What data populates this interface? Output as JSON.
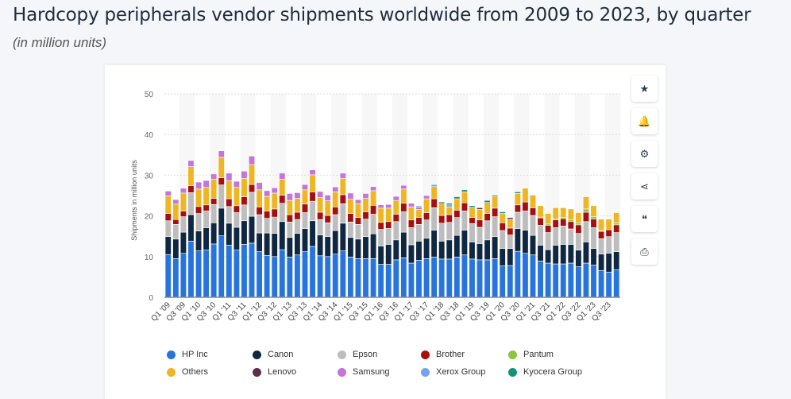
{
  "header": {
    "title": "Hardcopy peripherals vendor shipments worldwide from 2009 to 2023, by quarter",
    "subtitle": "(in million units)"
  },
  "toolbar": [
    {
      "icon": "star-icon",
      "glyph": "★"
    },
    {
      "icon": "bell-icon",
      "glyph": "🔔"
    },
    {
      "icon": "gear-icon",
      "glyph": "⚙"
    },
    {
      "icon": "share-icon",
      "glyph": "⋖"
    },
    {
      "icon": "quote-icon",
      "glyph": "❝"
    },
    {
      "icon": "print-icon",
      "glyph": "⎙"
    }
  ],
  "chart_data": {
    "type": "bar",
    "stacked": true,
    "ylabel": "Shipments in million units",
    "ylim": [
      0,
      50
    ],
    "yticks": [
      0,
      10,
      20,
      30,
      40,
      50
    ],
    "grid": true,
    "legend_position": "bottom",
    "categories": [
      "Q1 '09",
      "Q2 '09",
      "Q3 '09",
      "Q4 '09",
      "Q1 '10",
      "Q2 '10",
      "Q3 '10",
      "Q4 '10",
      "Q1 '11",
      "Q2 '11",
      "Q3 '11",
      "Q4 '11",
      "Q1 '12",
      "Q2 '12",
      "Q3 '12",
      "Q4 '12",
      "Q1 '13",
      "Q2 '13",
      "Q3 '13",
      "Q4 '13",
      "Q1 '14",
      "Q2 '14",
      "Q3 '14",
      "Q4 '14",
      "Q1 '15",
      "Q2 '15",
      "Q3 '15",
      "Q4 '15",
      "Q1 '16",
      "Q2 '16",
      "Q3 '16",
      "Q4 '16",
      "Q1 '17",
      "Q2 '17",
      "Q3 '17",
      "Q4 '17",
      "Q1 '18",
      "Q2 '18",
      "Q3 '18",
      "Q4 '18",
      "Q1 '19",
      "Q2 '19",
      "Q3 '19",
      "Q4 '19",
      "Q1 '20",
      "Q2 '20",
      "Q3 '20",
      "Q4 '20",
      "Q1 '21",
      "Q2 '21",
      "Q3 '21",
      "Q4 '21",
      "Q1 '22",
      "Q2 '22",
      "Q3 '22",
      "Q4 '22",
      "Q1 '23",
      "Q2 '23",
      "Q3 '23",
      "Q4 '23"
    ],
    "series": [
      {
        "name": "HP Inc",
        "color": "#2874dd",
        "values": [
          10.5,
          9.5,
          10.8,
          13.8,
          11.4,
          11.6,
          13.1,
          15.1,
          12.8,
          11.6,
          13.0,
          13.3,
          11.2,
          10.3,
          10.0,
          11.7,
          9.9,
          10.4,
          11.2,
          12.5,
          10.2,
          10.0,
          10.6,
          11.4,
          9.9,
          9.5,
          9.5,
          9.5,
          8.1,
          8.1,
          9.2,
          9.7,
          8.4,
          9.1,
          9.5,
          9.9,
          9.4,
          9.4,
          9.9,
          10.4,
          9.4,
          9.2,
          9.2,
          9.5,
          7.7,
          7.8,
          11.3,
          10.8,
          10.4,
          8.9,
          8.4,
          8.2,
          8.2,
          8.4,
          7.5,
          8.4,
          7.9,
          6.6,
          6.2,
          6.8
        ]
      },
      {
        "name": "Canon",
        "color": "#0f2740",
        "values": [
          4.4,
          4.8,
          5.2,
          6.5,
          4.9,
          5.5,
          5.2,
          6.8,
          5.4,
          5.6,
          5.8,
          6.6,
          4.6,
          5.5,
          5.7,
          6.9,
          4.8,
          5.3,
          5.7,
          6.3,
          5.1,
          4.9,
          5.8,
          6.8,
          4.8,
          4.8,
          5.4,
          6.1,
          4.5,
          4.9,
          4.9,
          6.3,
          4.5,
          4.7,
          5.0,
          6.6,
          4.4,
          4.7,
          5.3,
          6.1,
          4.2,
          4.0,
          4.9,
          5.4,
          4.3,
          4.2,
          5.6,
          5.7,
          4.8,
          3.9,
          3.3,
          4.6,
          4.8,
          4.6,
          4.1,
          5.2,
          4.1,
          4.0,
          4.6,
          4.4
        ]
      },
      {
        "name": "Epson",
        "color": "#bdbdbd",
        "values": [
          3.9,
          3.6,
          3.8,
          5.4,
          4.3,
          4.1,
          4.5,
          5.7,
          4.1,
          3.6,
          3.9,
          5.9,
          4.5,
          3.6,
          4.0,
          4.5,
          3.8,
          3.4,
          3.9,
          4.8,
          3.8,
          3.4,
          3.9,
          4.8,
          3.8,
          3.6,
          4.3,
          4.8,
          4.1,
          3.9,
          4.5,
          5.0,
          4.2,
          4.1,
          4.5,
          5.5,
          4.4,
          4.3,
          4.4,
          4.7,
          4.5,
          4.0,
          4.7,
          4.9,
          4.4,
          3.3,
          4.0,
          4.7,
          4.9,
          4.9,
          4.2,
          4.3,
          4.5,
          3.8,
          4.1,
          5.0,
          5.1,
          3.8,
          4.1,
          4.7
        ]
      },
      {
        "name": "Brother",
        "color": "#a60f0f",
        "values": [
          1.8,
          1.2,
          1.4,
          1.7,
          1.7,
          1.5,
          1.5,
          1.8,
          1.9,
          1.7,
          2.0,
          1.9,
          1.9,
          1.8,
          2.0,
          2.0,
          1.8,
          1.8,
          2.1,
          2.3,
          1.8,
          1.8,
          1.9,
          2.2,
          2.1,
          1.7,
          1.8,
          2.2,
          1.7,
          1.7,
          1.8,
          2.1,
          1.9,
          1.7,
          1.8,
          2.2,
          1.9,
          1.9,
          1.8,
          2.0,
          1.5,
          1.8,
          1.8,
          2.1,
          1.9,
          1.7,
          1.8,
          2.2,
          1.9,
          1.8,
          1.8,
          1.9,
          1.8,
          1.8,
          2.1,
          2.3,
          2.1,
          1.8,
          1.7,
          1.9
        ]
      },
      {
        "name": "Pantum",
        "color": "#8cc63e",
        "values": [
          0,
          0,
          0,
          0,
          0,
          0,
          0,
          0,
          0,
          0,
          0,
          0,
          0,
          0,
          0,
          0,
          0,
          0,
          0,
          0,
          0,
          0,
          0,
          0,
          0,
          0,
          0,
          0,
          0,
          0,
          0,
          0,
          0,
          0,
          0,
          0,
          0,
          0,
          0,
          0,
          0,
          0,
          0,
          0,
          0,
          0,
          0,
          0,
          0,
          0.2,
          0.3,
          0.3,
          0.3,
          0.4,
          0.5,
          0.8,
          0.6,
          0.2,
          0,
          0.5
        ]
      },
      {
        "name": "Others",
        "color": "#efb623",
        "values": [
          4.3,
          3.8,
          4.4,
          4.7,
          4.3,
          4.3,
          4.7,
          5.0,
          4.4,
          4.5,
          4.5,
          4.9,
          4.2,
          3.6,
          3.9,
          3.9,
          3.5,
          3.4,
          3.5,
          4.2,
          3.6,
          3.6,
          3.7,
          4.0,
          3.5,
          3.4,
          3.3,
          3.6,
          3.5,
          3.3,
          3.4,
          3.5,
          3.2,
          2.0,
          3.4,
          3.0,
          2.9,
          1.9,
          2.8,
          2.7,
          2.5,
          2.6,
          2.7,
          2.9,
          2.3,
          2.2,
          2.8,
          3.4,
          3.1,
          2.8,
          2.6,
          2.7,
          2.4,
          2.7,
          2.5,
          3.0,
          2.7,
          2.8,
          2.6,
          2.5
        ]
      },
      {
        "name": "Lenovo",
        "color": "#5c2f50",
        "values": [
          0,
          0,
          0,
          0,
          0,
          0,
          0,
          0,
          0,
          0,
          0,
          0,
          0,
          0,
          0,
          0,
          0,
          0,
          0,
          0,
          0,
          0,
          0,
          0,
          0,
          0,
          0,
          0,
          0,
          0,
          0,
          0,
          0,
          0,
          0,
          0,
          0,
          0,
          0,
          0,
          0,
          0.4,
          0,
          0,
          0,
          0.4,
          0,
          0,
          0,
          0,
          0,
          0,
          0,
          0,
          0,
          0,
          0,
          0,
          0,
          0
        ]
      },
      {
        "name": "Samsung",
        "color": "#c475dc",
        "values": [
          1.2,
          1.1,
          1.2,
          1.5,
          1.7,
          1.7,
          1.3,
          1.6,
          1.9,
          1.5,
          1.8,
          2.1,
          1.8,
          1.4,
          1.3,
          1.5,
          1.7,
          1.4,
          1.3,
          1.2,
          1.5,
          1.4,
          1.2,
          1.3,
          1.5,
          1.0,
          1.2,
          1.0,
          0.8,
          0.9,
          1.0,
          0.9,
          0.9,
          0.6,
          0.8,
          0,
          0,
          0,
          0,
          0,
          0,
          0,
          0,
          0,
          0,
          0,
          0,
          0,
          0,
          0,
          0,
          0,
          0,
          0,
          0,
          0,
          0,
          0,
          0,
          0
        ]
      },
      {
        "name": "Xerox Group",
        "color": "#74a5ea",
        "values": [
          0,
          0,
          0,
          0,
          0,
          0,
          0,
          0,
          0,
          0,
          0,
          0,
          0,
          0,
          0,
          0,
          0,
          0,
          0,
          0,
          0,
          0,
          0,
          0,
          0,
          0,
          0,
          0,
          0,
          0,
          0,
          0,
          0,
          0.3,
          0,
          0.5,
          0,
          0.5,
          0,
          0,
          0,
          0,
          0,
          0,
          0,
          0,
          0,
          0,
          0,
          0,
          0,
          0,
          0,
          0,
          0,
          0,
          0,
          0,
          0,
          0
        ]
      },
      {
        "name": "Kyocera Group",
        "color": "#13917d",
        "values": [
          0,
          0,
          0,
          0,
          0,
          0,
          0,
          0,
          0,
          0,
          0,
          0,
          0,
          0,
          0,
          0,
          0,
          0,
          0,
          0,
          0,
          0,
          0,
          0,
          0,
          0,
          0,
          0,
          0,
          0,
          0,
          0,
          0,
          0,
          0,
          0,
          0.4,
          0.4,
          0.5,
          0.5,
          0.4,
          0,
          0.5,
          0.3,
          0.4,
          0,
          0.4,
          0,
          0,
          0,
          0,
          0,
          0,
          0,
          0,
          0,
          0,
          0,
          0,
          0
        ]
      }
    ],
    "legend_order": [
      0,
      3,
      6,
      9,
      1,
      4,
      7,
      2,
      5,
      8
    ]
  }
}
